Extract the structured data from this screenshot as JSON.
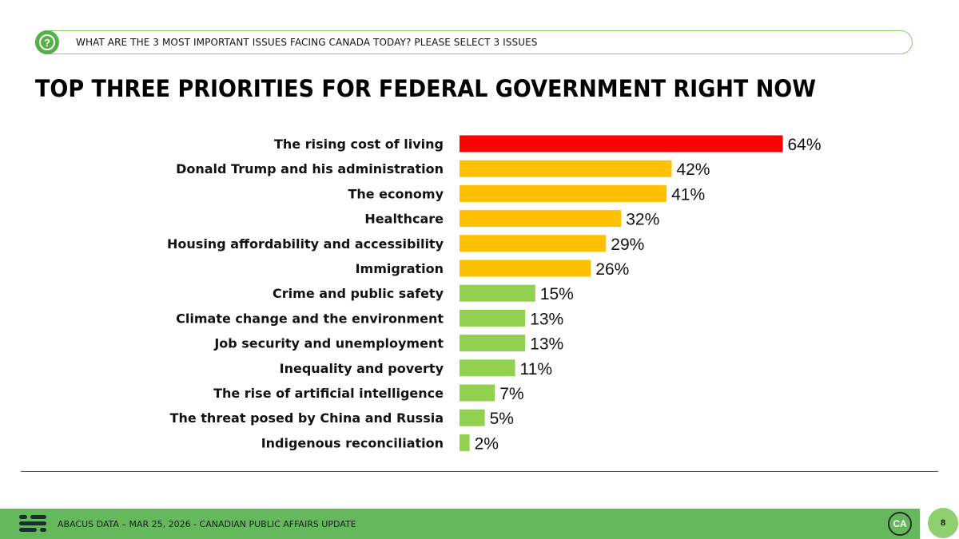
{
  "question": {
    "text": "WHAT ARE THE 3 MOST IMPORTANT ISSUES FACING CANADA TODAY? PLEASE SELECT 3 ISSUES",
    "icon": "question-icon"
  },
  "chart_data": {
    "type": "bar",
    "orientation": "horizontal",
    "title": "TOP THREE PRIORITIES FOR FEDERAL GOVERNMENT RIGHT NOW",
    "xlabel": "",
    "ylabel": "",
    "xlim": [
      0,
      100
    ],
    "grid": false,
    "unit": "%",
    "categories": [
      "The rising cost of living",
      "Donald Trump and his administration",
      "The economy",
      "Healthcare",
      "Housing affordability and accessibility",
      "Immigration",
      "Crime and public safety",
      "Climate change and the environment",
      "Job security and unemployment",
      "Inequality and poverty",
      "The rise of artificial intelligence",
      "The threat posed by China and Russia",
      "Indigenous reconciliation"
    ],
    "values": [
      64,
      42,
      41,
      32,
      29,
      26,
      15,
      13,
      13,
      11,
      7,
      5,
      2
    ],
    "bar_colors": [
      "#ff0000",
      "#ffc000",
      "#ffc000",
      "#ffc000",
      "#ffc000",
      "#ffc000",
      "#92d050",
      "#92d050",
      "#92d050",
      "#92d050",
      "#92d050",
      "#92d050",
      "#92d050"
    ]
  },
  "footer": {
    "text": "ABACUS DATA – MAR 25, 2026 - CANADIAN PUBLIC AFFAIRS UPDATE",
    "logo_text": "CA",
    "page_number": "8",
    "bg_color": "#66b85c"
  }
}
